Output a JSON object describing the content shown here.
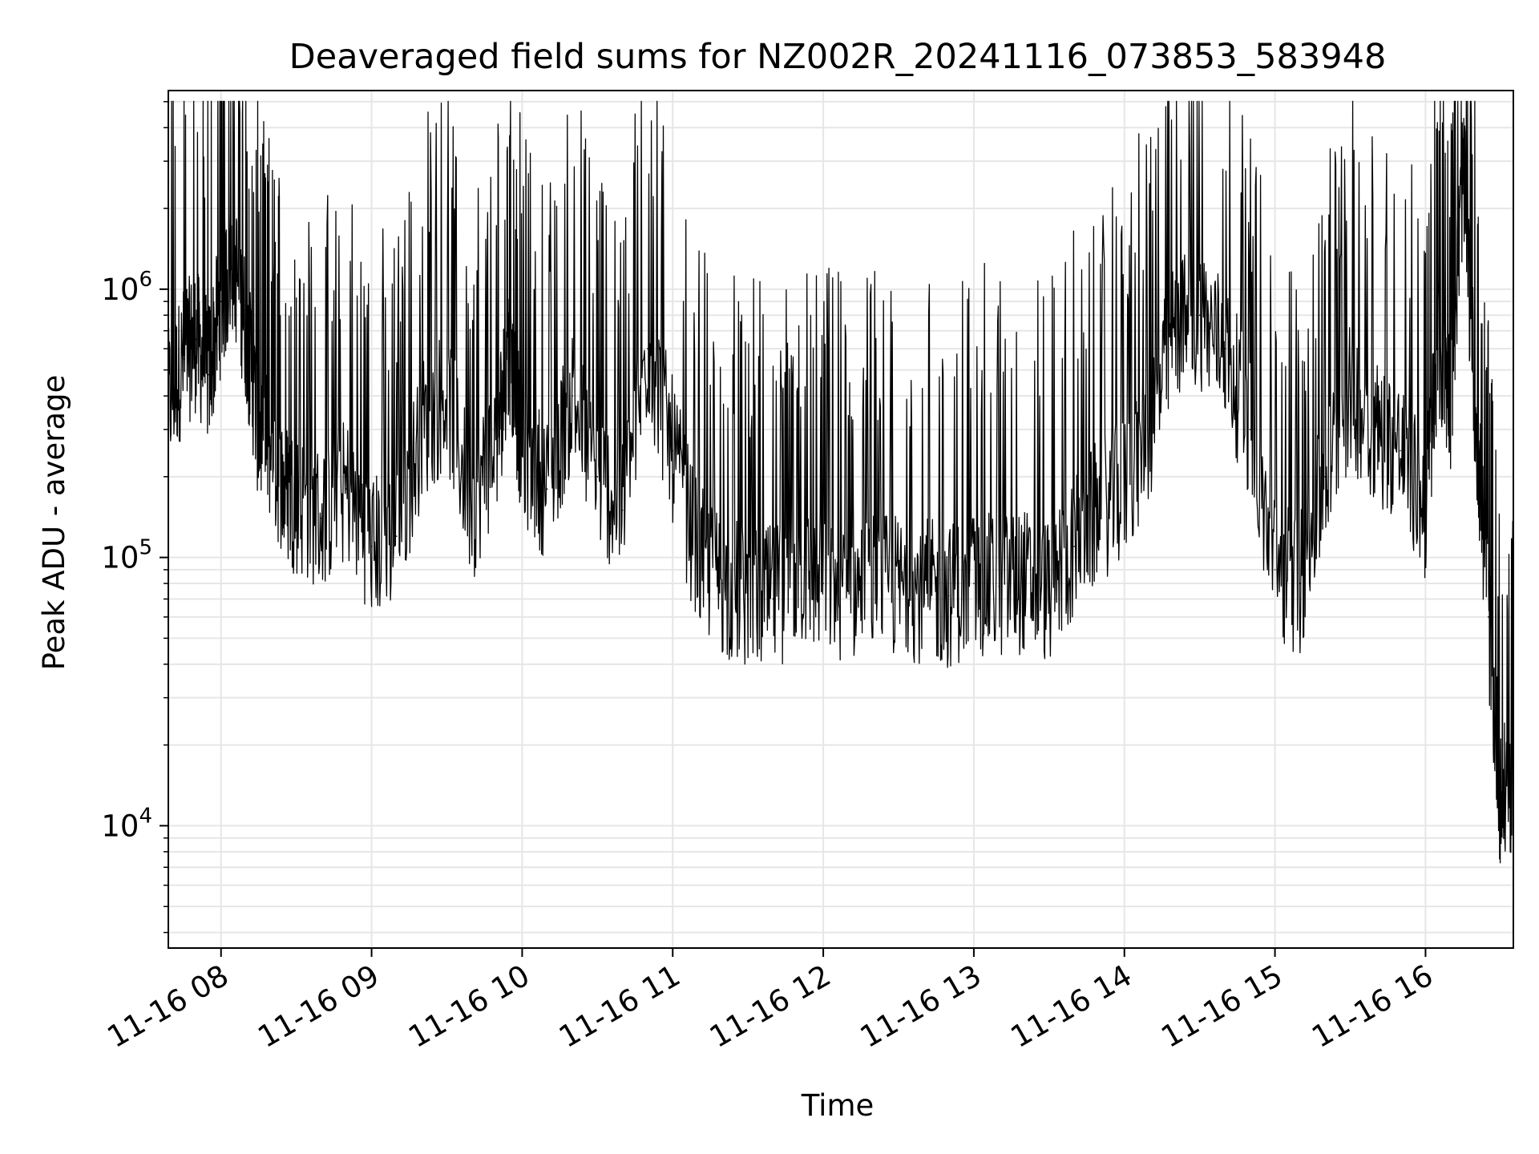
{
  "chart_data": {
    "type": "line",
    "title": "Deaveraged field sums for NZ002R_20241116_073853_583948",
    "xlabel": "Time",
    "ylabel": "Peak ADU - average",
    "yscale": "log",
    "grid": true,
    "line_color": "#000000",
    "grid_color": "#e6e6e6",
    "xlim": [
      "2024-11-16 07:39",
      "2024-11-16 16:35"
    ],
    "ylim": [
      3500,
      5500000
    ],
    "x_ticks": [
      {
        "value": "2024-11-16 08:00",
        "label": "11-16 08"
      },
      {
        "value": "2024-11-16 09:00",
        "label": "11-16 09"
      },
      {
        "value": "2024-11-16 10:00",
        "label": "11-16 10"
      },
      {
        "value": "2024-11-16 11:00",
        "label": "11-16 11"
      },
      {
        "value": "2024-11-16 12:00",
        "label": "11-16 12"
      },
      {
        "value": "2024-11-16 13:00",
        "label": "11-16 13"
      },
      {
        "value": "2024-11-16 14:00",
        "label": "11-16 14"
      },
      {
        "value": "2024-11-16 15:00",
        "label": "11-16 15"
      },
      {
        "value": "2024-11-16 16:00",
        "label": "11-16 16"
      }
    ],
    "y_ticks": [
      {
        "value": 10000,
        "base": "10",
        "exp": "4"
      },
      {
        "value": 100000,
        "base": "10",
        "exp": "5"
      },
      {
        "value": 1000000,
        "base": "10",
        "exp": "6"
      }
    ],
    "series": [
      {
        "x": [
          "2024-11-16 07:39",
          "2024-11-16 07:45",
          "2024-11-16 07:50",
          "2024-11-16 07:55",
          "2024-11-16 08:00",
          "2024-11-16 08:05",
          "2024-11-16 08:10",
          "2024-11-16 08:15",
          "2024-11-16 08:20",
          "2024-11-16 08:25",
          "2024-11-16 08:30",
          "2024-11-16 08:40",
          "2024-11-16 08:50",
          "2024-11-16 09:00",
          "2024-11-16 09:10",
          "2024-11-16 09:20",
          "2024-11-16 09:30",
          "2024-11-16 09:40",
          "2024-11-16 09:50",
          "2024-11-16 09:55",
          "2024-11-16 10:00",
          "2024-11-16 10:10",
          "2024-11-16 10:20",
          "2024-11-16 10:30",
          "2024-11-16 10:40",
          "2024-11-16 10:50",
          "2024-11-16 11:00",
          "2024-11-16 11:10",
          "2024-11-16 11:20",
          "2024-11-16 11:30",
          "2024-11-16 11:40",
          "2024-11-16 11:50",
          "2024-11-16 12:00",
          "2024-11-16 12:10",
          "2024-11-16 12:20",
          "2024-11-16 12:30",
          "2024-11-16 12:40",
          "2024-11-16 12:50",
          "2024-11-16 13:00",
          "2024-11-16 13:10",
          "2024-11-16 13:20",
          "2024-11-16 13:30",
          "2024-11-16 13:40",
          "2024-11-16 13:50",
          "2024-11-16 14:00",
          "2024-11-16 14:10",
          "2024-11-16 14:20",
          "2024-11-16 14:30",
          "2024-11-16 14:40",
          "2024-11-16 14:50",
          "2024-11-16 15:00",
          "2024-11-16 15:10",
          "2024-11-16 15:20",
          "2024-11-16 15:30",
          "2024-11-16 15:40",
          "2024-11-16 15:50",
          "2024-11-16 16:00",
          "2024-11-16 16:05",
          "2024-11-16 16:10",
          "2024-11-16 16:15",
          "2024-11-16 16:20",
          "2024-11-16 16:25",
          "2024-11-16 16:30",
          "2024-11-16 16:35"
        ],
        "y": [
          380000,
          550000,
          650000,
          480000,
          900000,
          1300000,
          700000,
          300000,
          250000,
          180000,
          160000,
          140000,
          180000,
          110000,
          120000,
          300000,
          400000,
          150000,
          280000,
          600000,
          250000,
          180000,
          400000,
          200000,
          150000,
          600000,
          250000,
          100000,
          80000,
          70000,
          70000,
          85000,
          80000,
          75000,
          80000,
          78000,
          75000,
          72000,
          80000,
          78000,
          82000,
          75000,
          110000,
          150000,
          180000,
          300000,
          700000,
          800000,
          600000,
          300000,
          90000,
          80000,
          200000,
          400000,
          300000,
          250000,
          150000,
          600000,
          400000,
          2800000,
          350000,
          60000,
          12000,
          15000
        ]
      }
    ]
  }
}
